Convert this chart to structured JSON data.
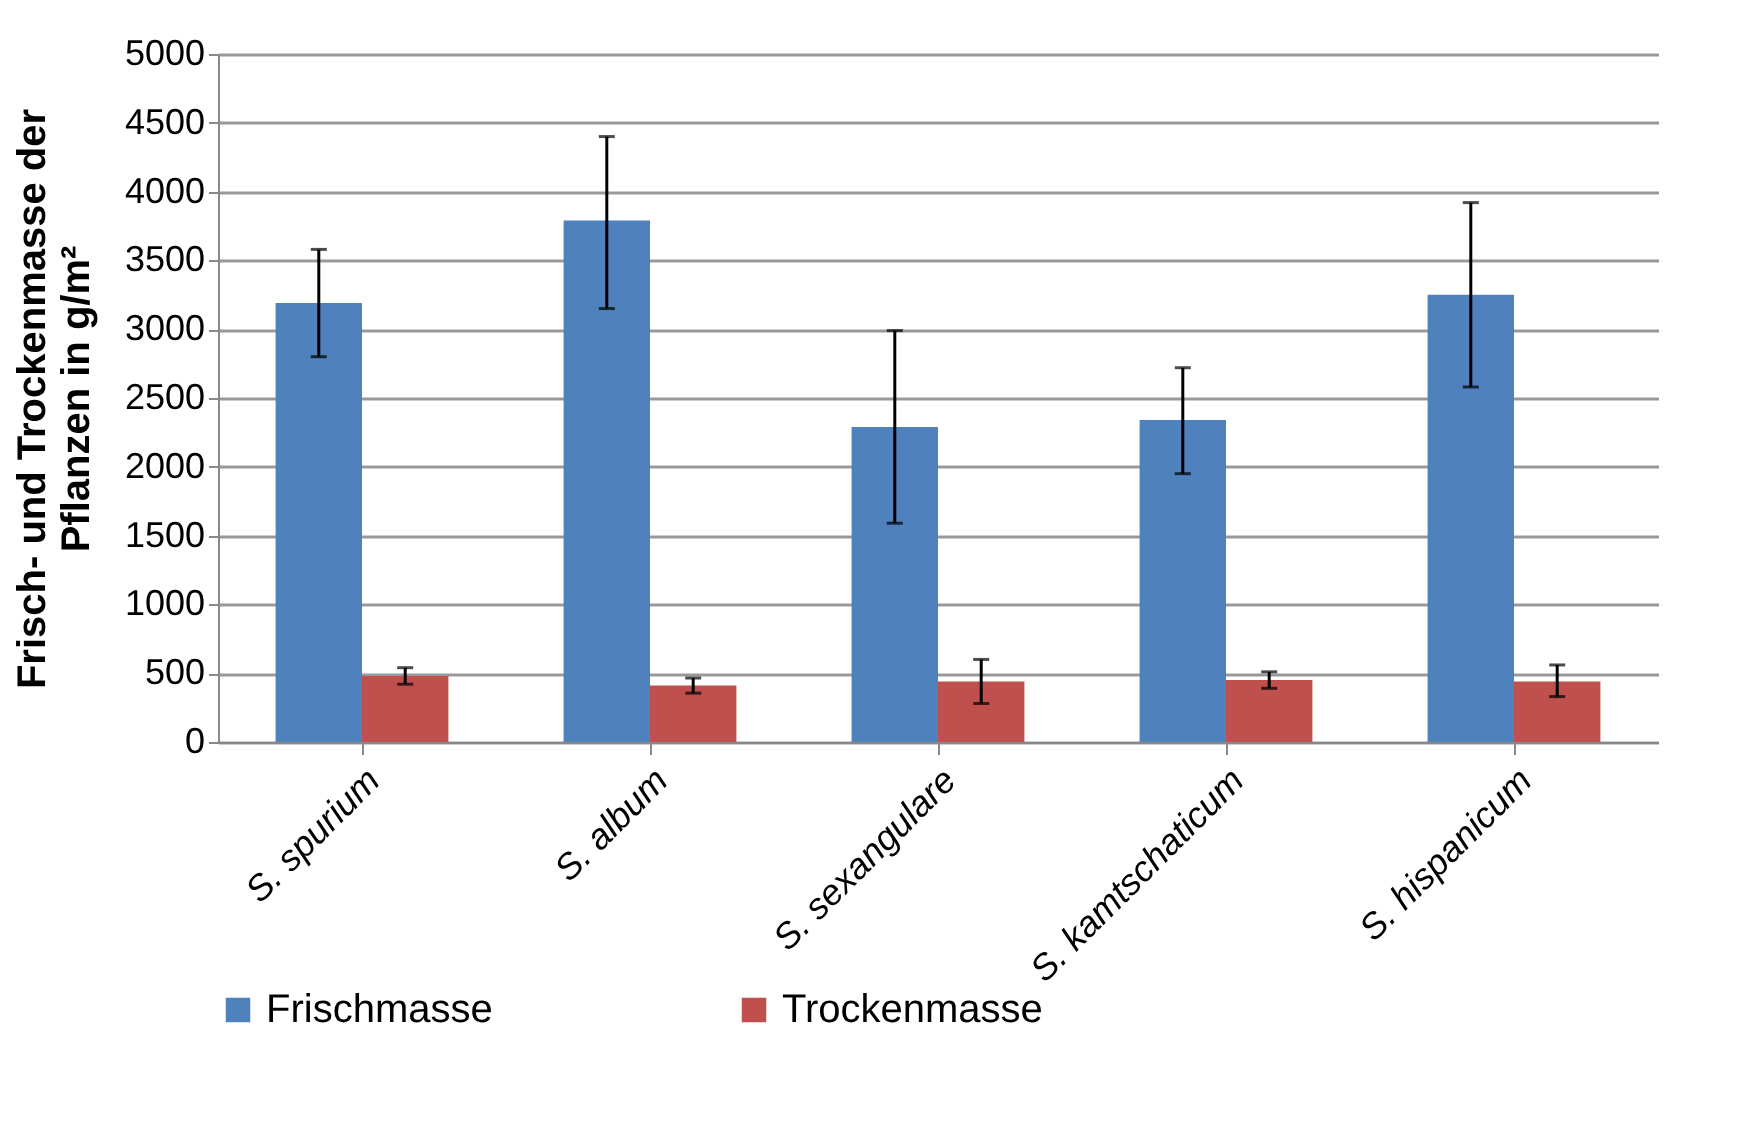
{
  "chart_data": {
    "type": "bar",
    "ylabel": "Frisch- und Trockenmasse der Pflanzen in g/m²",
    "categories": [
      "S. spurium",
      "S. album",
      "S. sexangulare",
      "S. kamtschaticum",
      "S. hispanicum"
    ],
    "series": [
      {
        "name": "Frischmasse",
        "color": "#4f81bd",
        "values": [
          3190,
          3790,
          2290,
          2340,
          3250
        ],
        "errors": [
          [
            2800,
            3580
          ],
          [
            3150,
            4400
          ],
          [
            1590,
            2990
          ],
          [
            1950,
            2720
          ],
          [
            2580,
            3920
          ]
        ]
      },
      {
        "name": "Trockenmasse",
        "color": "#c0504d",
        "values": [
          480,
          410,
          440,
          450,
          440
        ],
        "errors": [
          [
            420,
            540
          ],
          [
            355,
            465
          ],
          [
            280,
            600
          ],
          [
            390,
            510
          ],
          [
            330,
            560
          ]
        ]
      }
    ],
    "ylim": [
      0,
      5000
    ],
    "yticks": [
      0,
      500,
      1000,
      1500,
      2000,
      2500,
      3000,
      3500,
      4000,
      4500,
      5000
    ],
    "grid": true,
    "legend": "bottom"
  }
}
